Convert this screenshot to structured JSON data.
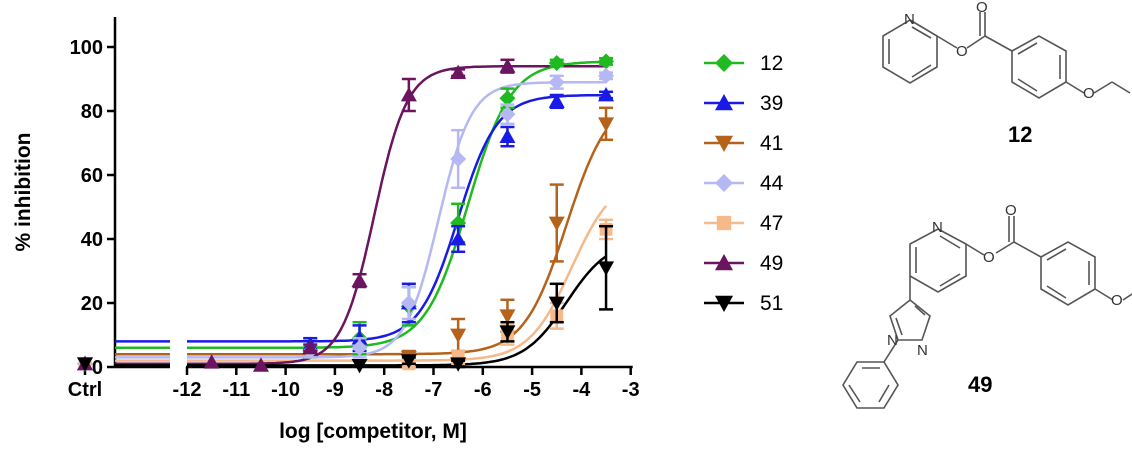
{
  "chart_data": {
    "type": "scatter",
    "xlabel": "log [competitor, M]",
    "ylabel": "% inhibition",
    "ctrl_label": "Ctrl",
    "xlim": [
      -12.6,
      -2.9
    ],
    "ylim": [
      0,
      110
    ],
    "x_ticks": [
      -12,
      -11,
      -10,
      -9,
      -8,
      -7,
      -6,
      -5,
      -4,
      -3
    ],
    "x_tick_labels": [
      "-12",
      "-11",
      "-10",
      "-9",
      "-8",
      "-7",
      "-6",
      "-5",
      "-4",
      "-3"
    ],
    "y_ticks": [
      0,
      20,
      40,
      60,
      80,
      100
    ],
    "y_tick_labels": [
      "0",
      "20",
      "40",
      "60",
      "80",
      "100"
    ],
    "grid": false,
    "legend_position": "right",
    "series": [
      {
        "name": "12",
        "color": "#1fba1f",
        "marker": "diamond",
        "bottom": 6,
        "top": 95.5,
        "logIC50": -6.3,
        "hill": 1.0,
        "ctrl": 1,
        "x": [
          -9.5,
          -8.5,
          -7.5,
          -6.5,
          -5.5,
          -4.5,
          -3.5
        ],
        "y": [
          6,
          9,
          19,
          45,
          84,
          95,
          95.5
        ],
        "err": [
          3,
          5,
          6,
          6,
          3,
          1,
          1
        ]
      },
      {
        "name": "39",
        "color": "#1a1ae6",
        "marker": "triangle-up",
        "bottom": 8,
        "top": 85,
        "logIC50": -6.5,
        "hill": 1.1,
        "ctrl": 1,
        "x": [
          -9.5,
          -8.5,
          -7.5,
          -6.5,
          -5.5,
          -4.5,
          -3.5
        ],
        "y": [
          7,
          9,
          20,
          40,
          72,
          83,
          85
        ],
        "err": [
          2,
          4,
          6,
          4,
          3,
          2,
          1
        ]
      },
      {
        "name": "41",
        "color": "#b5621b",
        "marker": "triangle-down",
        "bottom": 4,
        "top": 85,
        "logIC50": -4.3,
        "hill": 1.0,
        "ctrl": 1,
        "x": [
          -7.5,
          -6.5,
          -5.5,
          -4.5,
          -3.5
        ],
        "y": [
          3,
          10,
          16,
          45,
          76
        ],
        "err": [
          2,
          5,
          5,
          12,
          5
        ]
      },
      {
        "name": "44",
        "color": "#b5b8f2",
        "marker": "diamond",
        "bottom": 3,
        "top": 89,
        "logIC50": -6.9,
        "hill": 1.3,
        "ctrl": 1,
        "x": [
          -9.5,
          -8.5,
          -7.5,
          -6.5,
          -5.5,
          -4.5,
          -3.5
        ],
        "y": [
          5,
          6,
          20,
          65,
          79,
          89,
          91
        ],
        "err": [
          2,
          3,
          5,
          9,
          3,
          2,
          1
        ]
      },
      {
        "name": "47",
        "color": "#f5b98a",
        "marker": "square",
        "bottom": 2,
        "top": 60,
        "logIC50": -4.2,
        "hill": 1.0,
        "ctrl": 1,
        "x": [
          -7.5,
          -6.5,
          -5.5,
          -4.5,
          -3.5
        ],
        "y": [
          1,
          3,
          10,
          16,
          43
        ],
        "err": [
          1,
          2,
          3,
          4,
          3
        ]
      },
      {
        "name": "49",
        "color": "#6b1460",
        "marker": "triangle-up",
        "bottom": 1,
        "top": 94,
        "logIC50": -8.2,
        "hill": 1.3,
        "ctrl": 1,
        "x": [
          -11.5,
          -10.5,
          -9.5,
          -8.5,
          -7.5,
          -6.5,
          -5.5
        ],
        "y": [
          1.5,
          0.5,
          6,
          27,
          85,
          92,
          94
        ],
        "err": [
          0,
          0,
          1,
          2,
          5,
          1,
          2
        ]
      },
      {
        "name": "51",
        "color": "#000000",
        "marker": "triangle-down",
        "bottom": 0.5,
        "top": 40,
        "logIC50": -4.3,
        "hill": 1.0,
        "ctrl": 1,
        "x": [
          -8.5,
          -7.5,
          -6.5,
          -5.5,
          -4.5,
          -3.5
        ],
        "y": [
          0.5,
          2,
          1,
          11,
          20,
          31
        ],
        "err": [
          0,
          1,
          1,
          3,
          6,
          13
        ]
      }
    ]
  },
  "structures": {
    "compound_a_label": "12",
    "compound_b_label": "49",
    "atom_n": "N",
    "atom_o": "O"
  }
}
